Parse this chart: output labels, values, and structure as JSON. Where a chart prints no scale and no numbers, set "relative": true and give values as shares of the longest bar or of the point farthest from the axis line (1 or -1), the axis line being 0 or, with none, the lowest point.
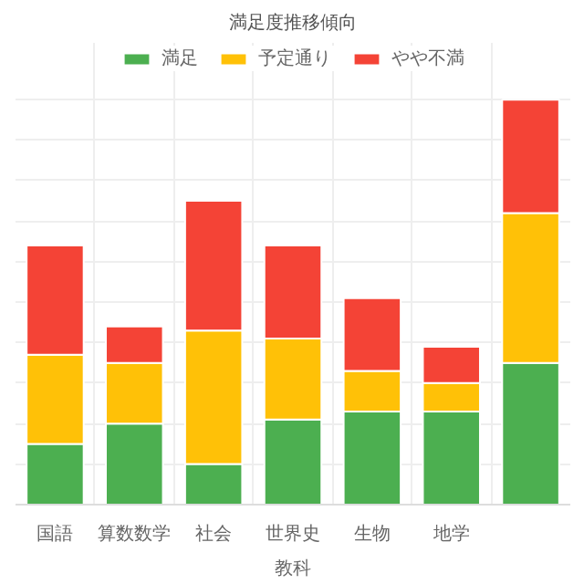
{
  "chart_data": {
    "type": "bar",
    "title": "満足度推移傾向",
    "xlabel": "教科",
    "relative": true,
    "stacked": true,
    "legend": "top",
    "grid": true,
    "categories": [
      "国語",
      "算数数学",
      "社会",
      "世界史",
      "生物",
      "地学",
      null
    ],
    "series": [
      {
        "name": "満足",
        "color": "#4caf50",
        "values": [
          0.15,
          0.2,
          0.1,
          0.21,
          0.23,
          0.23,
          0.35
        ]
      },
      {
        "name": "予定通り",
        "color": "#ffc107",
        "values": [
          0.22,
          0.15,
          0.33,
          0.2,
          0.1,
          0.07,
          0.37
        ]
      },
      {
        "name": "やや不満",
        "color": "#f44336",
        "values": [
          0.27,
          0.09,
          0.32,
          0.23,
          0.18,
          0.09,
          0.28
        ]
      }
    ]
  }
}
